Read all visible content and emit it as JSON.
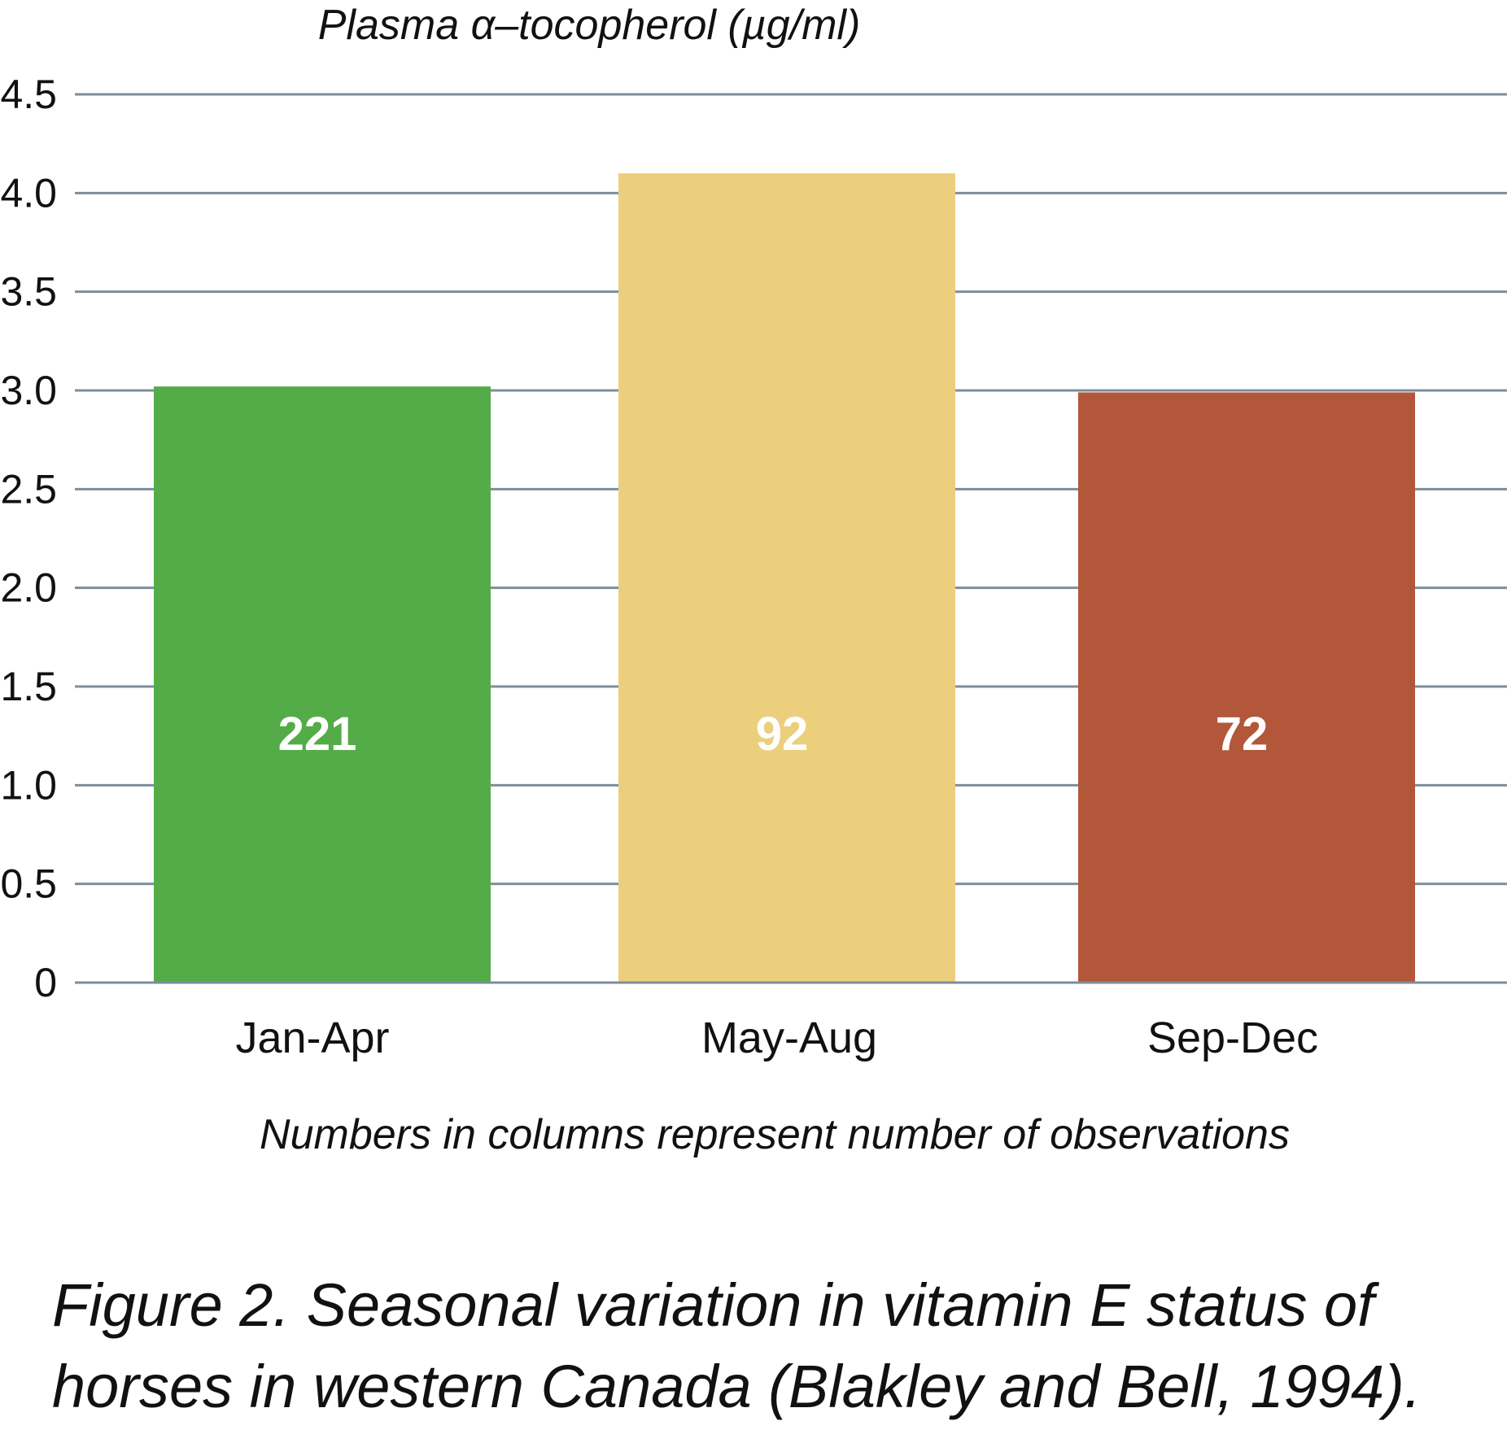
{
  "chart_data": {
    "type": "bar",
    "ylabel": "Plasma α–tocopherol (µg/ml)",
    "xlabel": "",
    "categories": [
      "Jan-Apr",
      "May-Aug",
      "Sep-Dec"
    ],
    "values": [
      3.02,
      4.1,
      2.99
    ],
    "observations": [
      "221",
      "92",
      "72"
    ],
    "colors": [
      "#54ac48",
      "#eccf7c",
      "#b3573a"
    ],
    "ylim": [
      0,
      4.5
    ],
    "yticks": [
      0,
      0.5,
      1.0,
      1.5,
      2.0,
      2.5,
      3.0,
      3.5,
      4.0,
      4.5
    ],
    "ytick_labels": [
      "0",
      "0.5",
      "1.0",
      "1.5",
      "2.0",
      "2.5",
      "3.0",
      "3.5",
      "4.0",
      "4.5"
    ],
    "grid": true,
    "grid_color": "#7c8e9c",
    "note": "Numbers in columns represent number of observations"
  },
  "caption": "Figure 2. Seasonal variation in vitamin E status of horses in western Canada (Blakley and Bell, 1994)."
}
